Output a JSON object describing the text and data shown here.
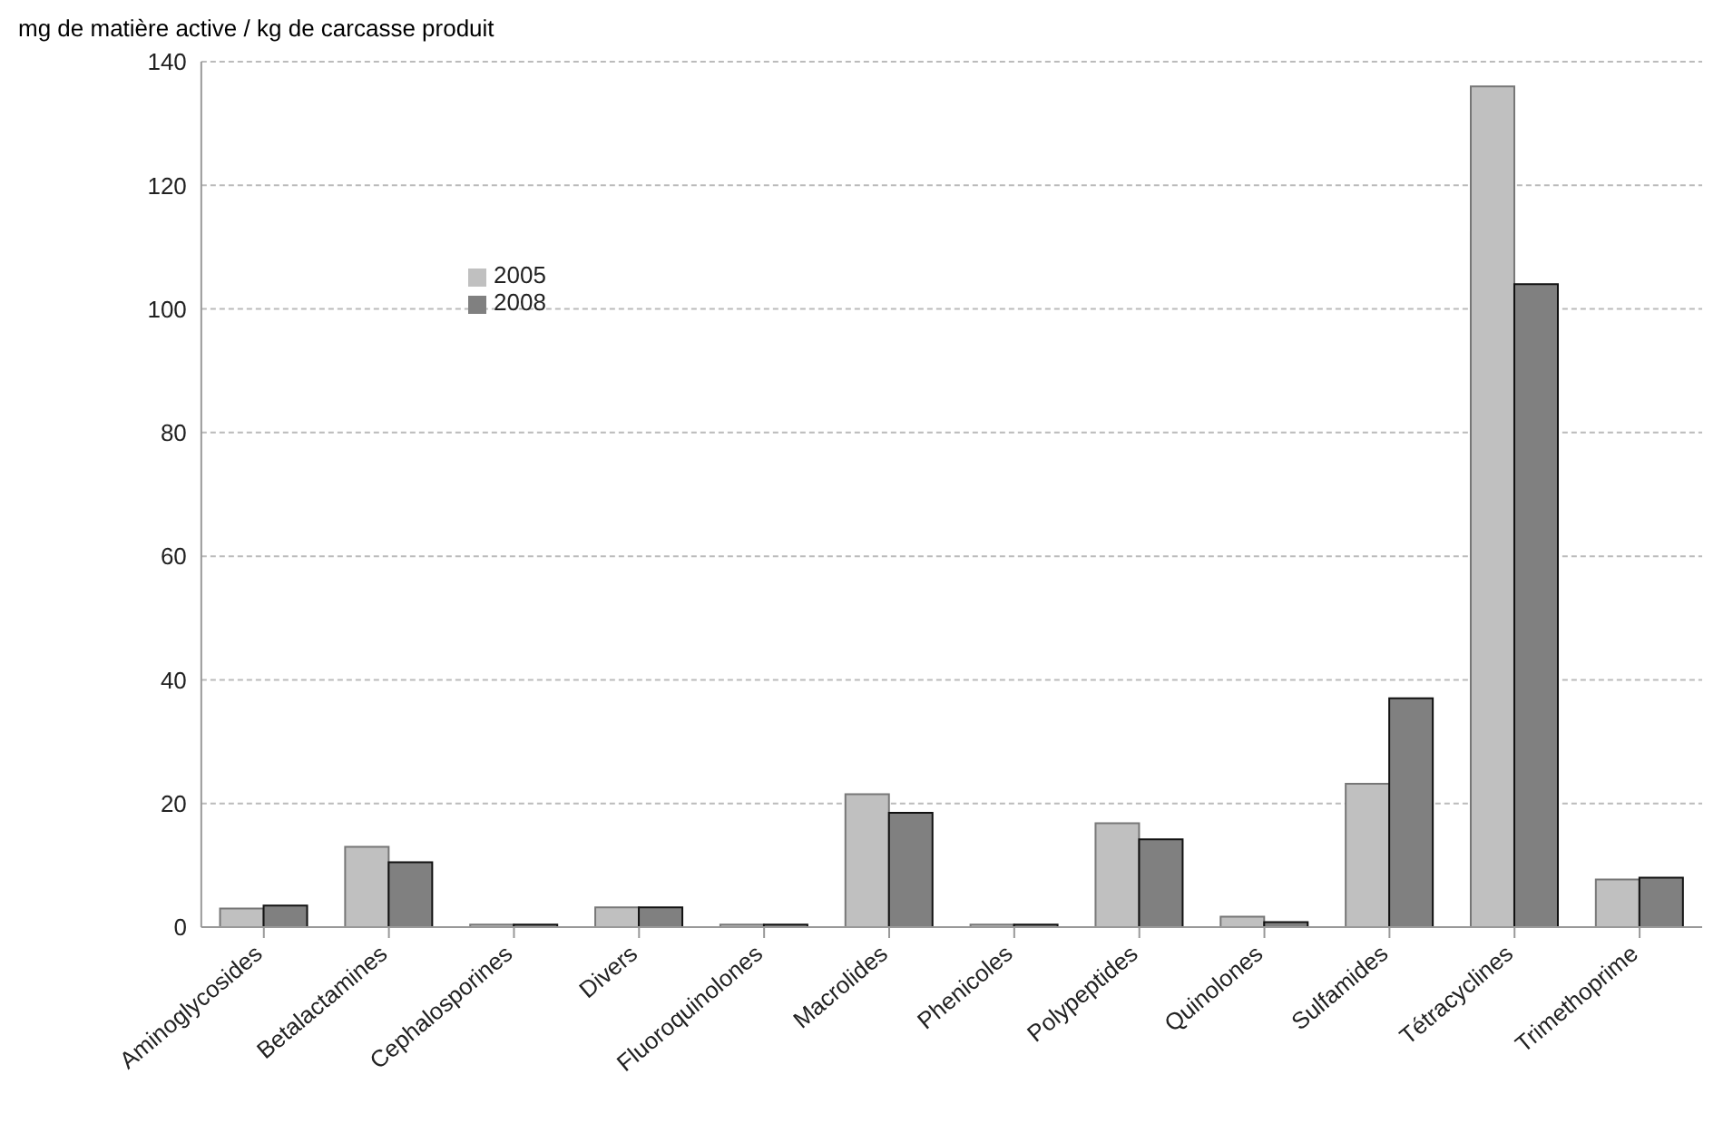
{
  "chart_data": {
    "type": "bar",
    "ylabel": "mg de matière active / kg de carcasse produit",
    "categories": [
      "Aminoglycosides",
      "Betalactamines",
      "Cephalosporines",
      "Divers",
      "Fluoroquinolones",
      "Macrolides",
      "Phenicoles",
      "Polypeptides",
      "Quinolones",
      "Sulfamides",
      "Tétracyclines",
      "Trimethoprime"
    ],
    "series": [
      {
        "name": "2005",
        "color": "#c0c0c0",
        "values": [
          3.0,
          13,
          0.4,
          3.2,
          0.4,
          21.5,
          0.4,
          16.8,
          1.7,
          23.2,
          136,
          7.7
        ]
      },
      {
        "name": "2008",
        "color": "#808080",
        "values": [
          3.5,
          10.5,
          0.4,
          3.2,
          0.4,
          18.5,
          0.4,
          14.2,
          0.8,
          37,
          104,
          8
        ]
      }
    ],
    "ylim": [
      0,
      140
    ],
    "yticks": [
      0,
      20,
      40,
      60,
      80,
      100,
      120,
      140
    ],
    "grid": "y",
    "legend": "top left"
  }
}
